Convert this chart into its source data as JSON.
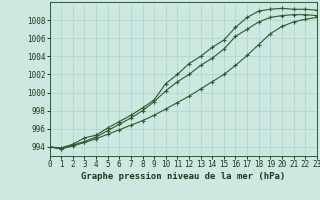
{
  "title": "",
  "xlabel": "Graphe pression niveau de la mer (hPa)",
  "background_color": "#cce8e0",
  "grid_color": "#aad4cc",
  "line_color": "#2d5a2d",
  "x": [
    0,
    1,
    2,
    3,
    4,
    5,
    6,
    7,
    8,
    9,
    10,
    11,
    12,
    13,
    14,
    15,
    16,
    17,
    18,
    19,
    20,
    21,
    22,
    23
  ],
  "line1": [
    994.0,
    993.8,
    994.2,
    994.6,
    995.1,
    995.8,
    996.5,
    997.2,
    998.0,
    999.0,
    1000.2,
    1001.2,
    1002.0,
    1003.0,
    1003.8,
    1004.8,
    1006.2,
    1007.0,
    1007.8,
    1008.3,
    1008.5,
    1008.6,
    1008.6,
    1008.5
  ],
  "line2": [
    994.0,
    993.9,
    994.3,
    995.0,
    995.3,
    996.1,
    996.8,
    997.5,
    998.3,
    999.2,
    1001.0,
    1002.0,
    1003.2,
    1004.0,
    1005.0,
    1005.8,
    1007.2,
    1008.3,
    1009.0,
    1009.2,
    1009.3,
    1009.2,
    1009.2,
    1009.1
  ],
  "line3": [
    994.0,
    993.8,
    994.1,
    994.5,
    994.9,
    995.4,
    995.9,
    996.4,
    996.9,
    997.5,
    998.2,
    998.9,
    999.6,
    1000.4,
    1001.2,
    1002.0,
    1003.0,
    1004.1,
    1005.3,
    1006.5,
    1007.3,
    1007.8,
    1008.1,
    1008.3
  ],
  "ylim": [
    993.0,
    1010.0
  ],
  "xlim": [
    0,
    23
  ],
  "yticks": [
    994,
    996,
    998,
    1000,
    1002,
    1004,
    1006,
    1008
  ],
  "xticks": [
    0,
    1,
    2,
    3,
    4,
    5,
    6,
    7,
    8,
    9,
    10,
    11,
    12,
    13,
    14,
    15,
    16,
    17,
    18,
    19,
    20,
    21,
    22,
    23
  ],
  "markersize": 3.0,
  "linewidth": 0.8,
  "fontsize_label": 6.5,
  "fontsize_tick": 5.5
}
